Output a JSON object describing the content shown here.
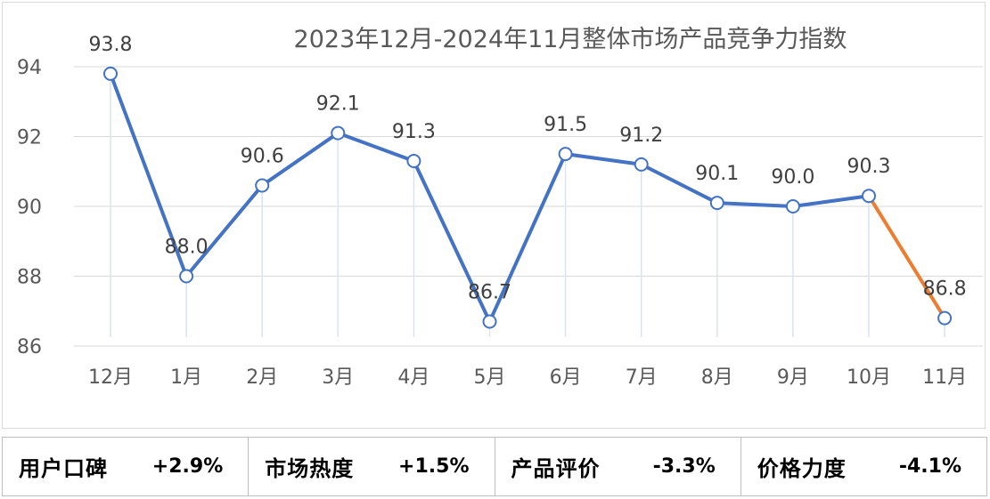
{
  "chart_data": {
    "type": "line",
    "title": "2023年12月-2024年11月整体市场产品竞争力指数",
    "categories": [
      "12月",
      "1月",
      "2月",
      "3月",
      "4月",
      "5月",
      "6月",
      "7月",
      "8月",
      "9月",
      "10月",
      "11月"
    ],
    "series": [
      {
        "values": [
          93.8,
          88.0,
          90.6,
          92.1,
          91.3,
          86.7,
          91.5,
          91.2,
          90.1,
          90.0,
          90.3,
          86.8
        ]
      }
    ],
    "data_labels": [
      "93.8",
      "88.0",
      "90.6",
      "92.1",
      "91.3",
      "86.7",
      "91.5",
      "91.2",
      "90.1",
      "90.0",
      "90.3",
      "86.8"
    ],
    "yticks": [
      "94",
      "92",
      "90",
      "88",
      "86"
    ],
    "ylim": [
      86,
      94
    ],
    "xlabel": "",
    "ylabel": "",
    "grid": "horizontal",
    "colors": {
      "line": "#4472c4",
      "last_segment": "#ed7d31",
      "marker_fill": "#ffffff",
      "gridline": "#d9d9d9",
      "dropline": "#dae3f3"
    }
  },
  "summary": [
    {
      "label": "用户口碑",
      "value": "+2.9%"
    },
    {
      "label": "市场热度",
      "value": "+1.5%"
    },
    {
      "label": "产品评价",
      "value": "-3.3%"
    },
    {
      "label": "价格力度",
      "value": "-4.1%"
    }
  ]
}
